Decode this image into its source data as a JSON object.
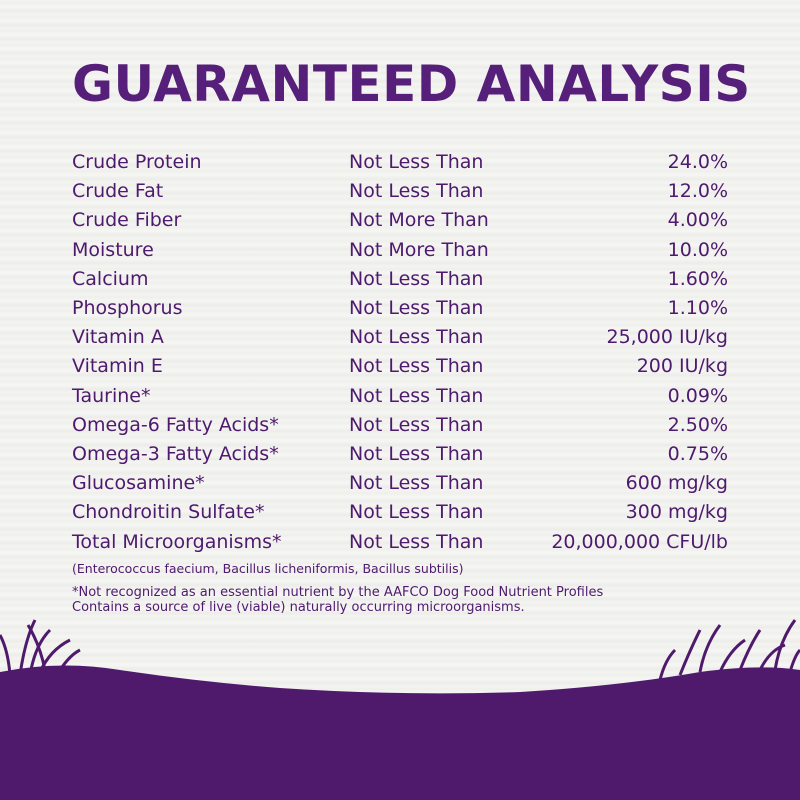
{
  "title": "GUARANTEED ANALYSIS",
  "table": {
    "rows": [
      [
        "Crude Protein",
        "Not Less Than",
        "24.0%"
      ],
      [
        "Crude Fat",
        "Not Less Than",
        "12.0%"
      ],
      [
        "Crude Fiber",
        "Not More Than",
        "4.00%"
      ],
      [
        "Moisture",
        "Not More Than",
        "10.0%"
      ],
      [
        "Calcium",
        "Not Less Than",
        "1.60%"
      ],
      [
        "Phosphorus",
        "Not Less Than",
        "1.10%"
      ],
      [
        "Vitamin A",
        "Not Less Than",
        "25,000 IU/kg"
      ],
      [
        "Vitamin E",
        "Not Less Than",
        "200 IU/kg"
      ],
      [
        "Taurine*",
        "Not Less Than",
        "0.09%"
      ],
      [
        "Omega-6 Fatty Acids*",
        "Not Less Than",
        "2.50%"
      ],
      [
        "Omega-3 Fatty Acids*",
        "Not Less Than",
        "0.75%"
      ],
      [
        "Glucosamine*",
        "Not Less Than",
        "600 mg/kg"
      ],
      [
        "Chondroitin Sulfate*",
        "Not Less Than",
        "300 mg/kg"
      ],
      [
        "Total Microorganisms*",
        "Not Less Than",
        "20,000,000 CFU/lb"
      ]
    ],
    "subnote": "(Enterococcus faecium, Bacillus licheniformis, Bacillus subtilis)"
  },
  "footnotes": [
    "*Not recognized as an essential nutrient by the AAFCO Dog Food Nutrient Profiles",
    "Contains a source of live (viable) naturally occurring microorganisms."
  ]
}
